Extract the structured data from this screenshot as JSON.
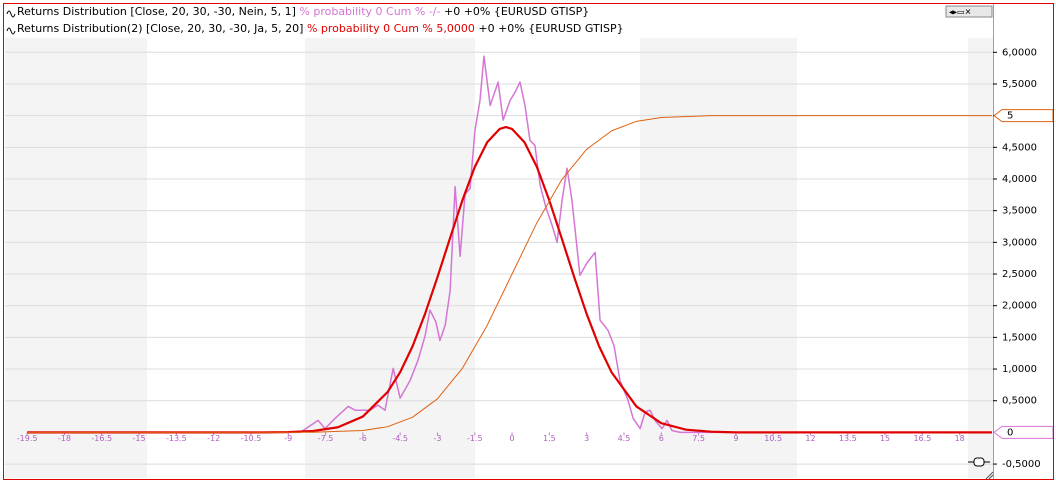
{
  "chart_data": {
    "type": "line",
    "header_lines": [
      {
        "name": "Returns Distribution [Close, 20, 30, -30, Nein, 5, 1]",
        "stat": "% probability 0 Cum % -/-",
        "stat_color": "#d575d5",
        "suffix": "+0 +0% {EURUSD GTISP}"
      },
      {
        "name": "Returns Distribution(2) [Close, 20, 30, -30, Ja, 5, 20]",
        "stat": "% probability 0 Cum % 5,0000",
        "stat_color": "#e00000",
        "suffix": "+0 +0% {EURUSD GTISP}"
      }
    ],
    "xlim": [
      -20.39,
      19.34
    ],
    "ylim": [
      -0.72,
      6.51
    ],
    "grid": true,
    "xticks": [
      -19.5,
      -18,
      -16.5,
      -15,
      -13.5,
      -12,
      -10.5,
      -9,
      -7.5,
      -6,
      -4.5,
      -3,
      -1.5,
      0,
      1.5,
      3,
      4.5,
      6,
      7.5,
      9,
      10.5,
      12,
      13.5,
      15,
      16.5,
      18
    ],
    "yticks": [
      {
        "value": -0.5,
        "label": "-0,5000"
      },
      {
        "value": 0.5,
        "label": "0,5000"
      },
      {
        "value": 1,
        "label": "1,0000"
      },
      {
        "value": 1.5,
        "label": "1,5000"
      },
      {
        "value": 2,
        "label": "2,0000"
      },
      {
        "value": 2.5,
        "label": "2,5000"
      },
      {
        "value": 3,
        "label": "3,0000"
      },
      {
        "value": 3.5,
        "label": "3,5000"
      },
      {
        "value": 4,
        "label": "4,0000"
      },
      {
        "value": 4.5,
        "label": "4,5000"
      },
      {
        "value": 5,
        "label": "5,0000"
      },
      {
        "value": 5.5,
        "label": "5,5000"
      },
      {
        "value": 6,
        "label": "6,0000"
      }
    ],
    "series": [
      {
        "color": "#d575d5",
        "width": 1.5,
        "marker_label": true,
        "x": [
          -19.5,
          -8.52,
          -7.8,
          -7.52,
          -7.12,
          -6.59,
          -6.31,
          -6.03,
          -5.71,
          -5.39,
          -5.11,
          -4.78,
          -4.5,
          -4.1,
          -3.78,
          -3.5,
          -3.3,
          -3.06,
          -2.9,
          -2.69,
          -2.49,
          -2.29,
          -2.09,
          -1.89,
          -1.69,
          -1.49,
          -1.29,
          -1.13,
          -0.88,
          -0.56,
          -0.36,
          -0.08,
          0.12,
          0.32,
          0.52,
          0.72,
          0.92,
          1.13,
          1.37,
          1.61,
          1.81,
          2.01,
          2.21,
          2.41,
          2.73,
          3.02,
          3.34,
          3.54,
          3.86,
          4.1,
          4.34,
          4.66,
          4.87,
          5.15,
          5.35,
          5.55,
          5.75,
          6.03,
          6.23,
          6.43,
          6.76,
          19.3
        ],
        "values": [
          0,
          0,
          0.19,
          0.06,
          0.22,
          0.41,
          0.35,
          0.35,
          0.35,
          0.43,
          0.35,
          1.01,
          0.54,
          0.82,
          1.14,
          1.52,
          1.93,
          1.74,
          1.45,
          1.69,
          2.24,
          3.88,
          2.78,
          3.76,
          3.85,
          4.77,
          5.24,
          5.94,
          5.16,
          5.53,
          4.93,
          5.24,
          5.37,
          5.53,
          5.16,
          4.61,
          4.53,
          3.9,
          3.54,
          3.27,
          3,
          3.66,
          4.17,
          3.66,
          2.48,
          2.68,
          2.84,
          1.77,
          1.61,
          1.37,
          0.82,
          0.51,
          0.22,
          0.06,
          0.32,
          0.35,
          0.19,
          0.06,
          0.19,
          0.03,
          0,
          0
        ]
      },
      {
        "color": "#e00000",
        "width": 2.2,
        "x": [
          -19.5,
          -10,
          -9,
          -8,
          -7,
          -6,
          -5,
          -4.5,
          -4,
          -3.5,
          -3,
          -2.5,
          -2,
          -1.5,
          -1,
          -0.5,
          -0.25,
          0,
          0.5,
          1,
          1.5,
          2,
          2.5,
          3,
          3.5,
          4,
          5,
          6,
          7,
          8,
          9,
          19.3
        ],
        "values": [
          0,
          0,
          0.005,
          0.022,
          0.081,
          0.25,
          0.64,
          0.95,
          1.36,
          1.87,
          2.45,
          3.06,
          3.66,
          4.19,
          4.58,
          4.79,
          4.82,
          4.79,
          4.58,
          4.19,
          3.66,
          3.06,
          2.45,
          1.87,
          1.36,
          0.95,
          0.41,
          0.145,
          0.043,
          0.011,
          0,
          0
        ]
      },
      {
        "color": "#e06010",
        "width": 1,
        "marker_label": true,
        "x": [
          -19.5,
          -8,
          -6,
          -5,
          -4,
          -3,
          -2,
          -1,
          0,
          1,
          2,
          3,
          4,
          5,
          6,
          8,
          19.3
        ],
        "values": [
          0,
          0.002,
          0.03,
          0.09,
          0.24,
          0.53,
          1.01,
          1.69,
          2.5,
          3.31,
          3.99,
          4.47,
          4.76,
          4.91,
          4.97,
          5,
          5
        ]
      }
    ]
  }
}
